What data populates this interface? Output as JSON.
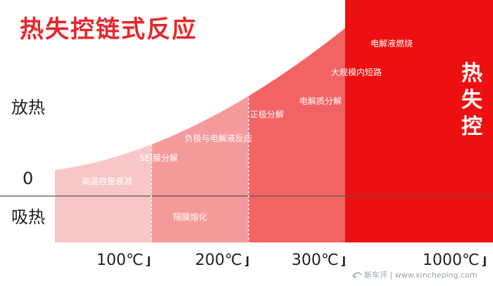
{
  "title": "热失控链式反应",
  "y_labels": {
    "exothermic": "放热",
    "zero": "0",
    "endothermic": "吸热"
  },
  "stages": [
    {
      "temp": "100℃",
      "color": "#f7c7c7"
    },
    {
      "temp": "200℃",
      "color": "#f59a9a"
    },
    {
      "temp": "300℃",
      "color": "#f26464"
    },
    {
      "temp": "1000℃",
      "color": "#ee1010"
    }
  ],
  "reactions": [
    "高温容量衰减",
    "隔膜熔化",
    "SEI膜分解",
    "负极与电解液反应",
    "正极分解",
    "电解质分解",
    "大规模内短路",
    "电解液燃烧"
  ],
  "end_label": [
    "热",
    "失",
    "控"
  ],
  "watermark": "新车评 | www.xincheping.com"
}
